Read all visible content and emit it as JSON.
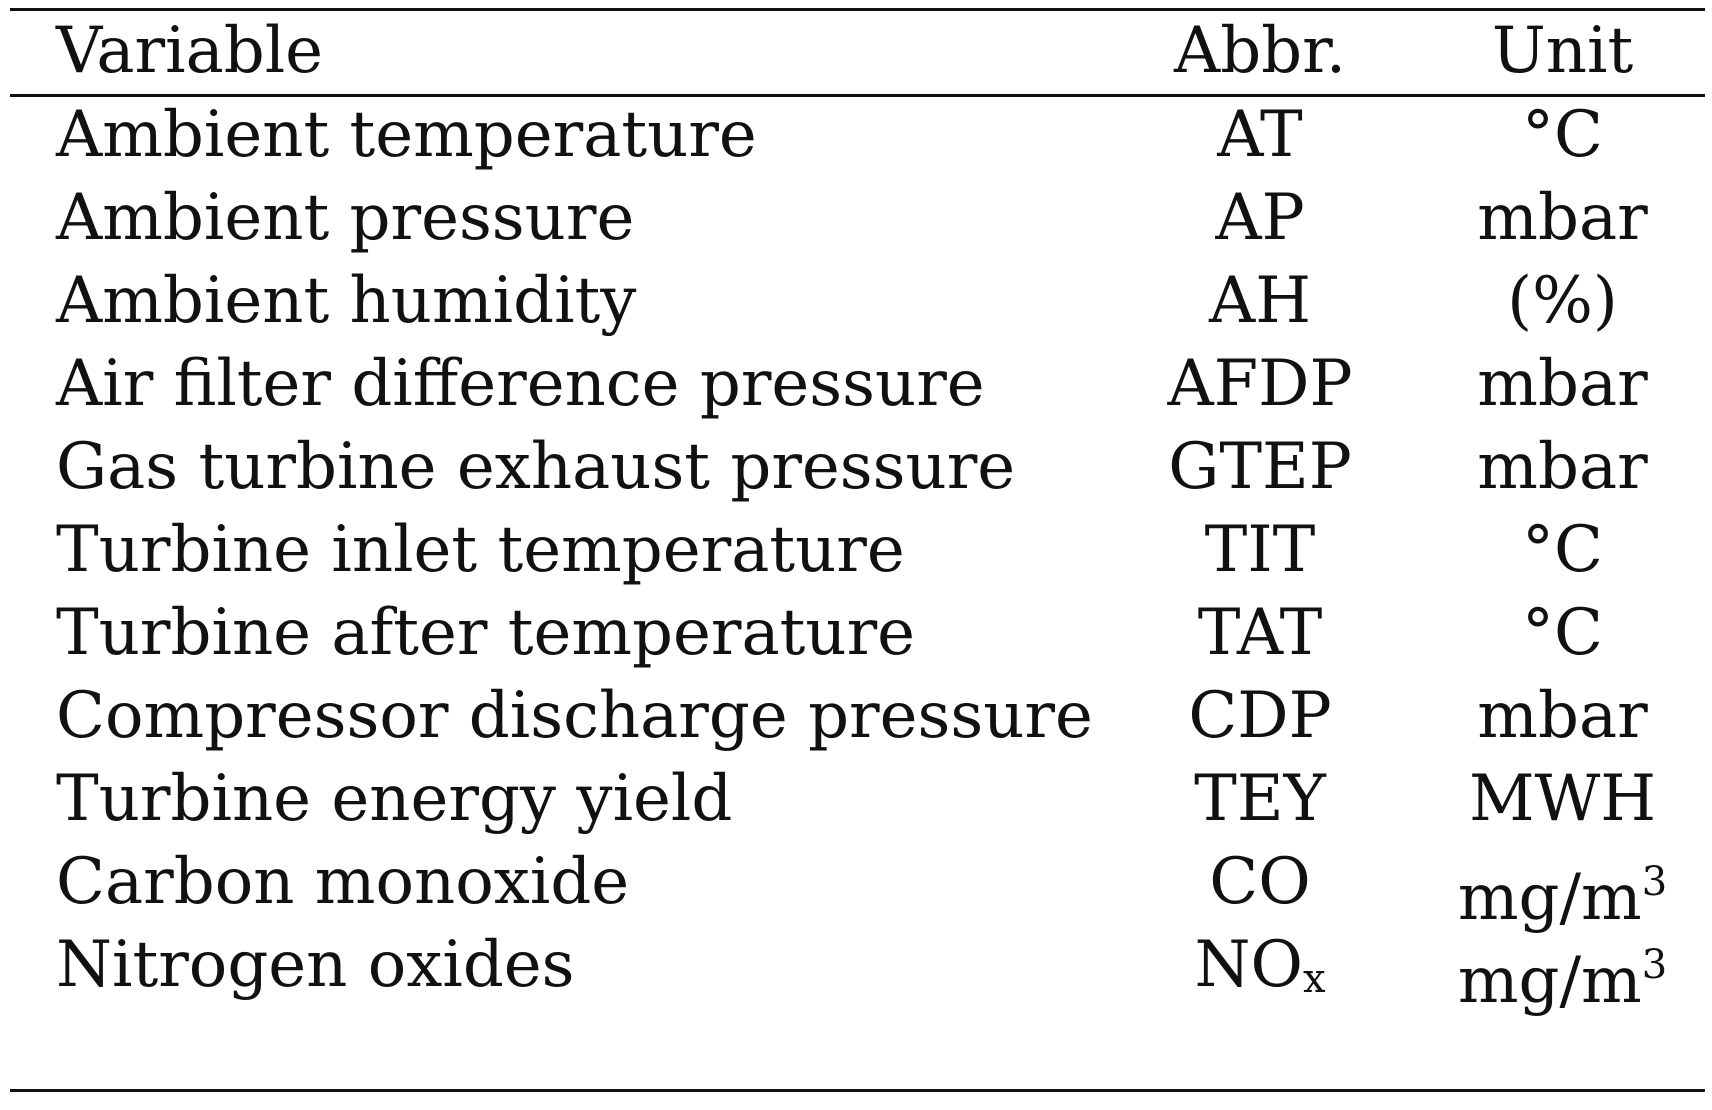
{
  "table": {
    "headers": {
      "variable": "Variable",
      "abbr": "Abbr.",
      "unit": "Unit"
    },
    "rows": [
      {
        "variable": "Ambient temperature",
        "abbr": "AT",
        "abbr_sub": "",
        "unit": "°C",
        "unit_sup": ""
      },
      {
        "variable": "Ambient pressure",
        "abbr": "AP",
        "abbr_sub": "",
        "unit": "mbar",
        "unit_sup": ""
      },
      {
        "variable": "Ambient humidity",
        "abbr": "AH",
        "abbr_sub": "",
        "unit": "(%)",
        "unit_sup": ""
      },
      {
        "variable": "Air filter difference pressure",
        "abbr": "AFDP",
        "abbr_sub": "",
        "unit": "mbar",
        "unit_sup": ""
      },
      {
        "variable": "Gas turbine exhaust pressure",
        "abbr": "GTEP",
        "abbr_sub": "",
        "unit": "mbar",
        "unit_sup": ""
      },
      {
        "variable": "Turbine inlet temperature",
        "abbr": "TIT",
        "abbr_sub": "",
        "unit": "°C",
        "unit_sup": ""
      },
      {
        "variable": "Turbine after temperature",
        "abbr": "TAT",
        "abbr_sub": "",
        "unit": "°C",
        "unit_sup": ""
      },
      {
        "variable": "Compressor discharge pressure",
        "abbr": "CDP",
        "abbr_sub": "",
        "unit": "mbar",
        "unit_sup": ""
      },
      {
        "variable": "Turbine energy yield",
        "abbr": "TEY",
        "abbr_sub": "",
        "unit": "MWH",
        "unit_sup": ""
      },
      {
        "variable": "Carbon monoxide",
        "abbr": "CO",
        "abbr_sub": "",
        "unit": "mg/m",
        "unit_sup": "3"
      },
      {
        "variable": "Nitrogen oxides",
        "abbr": "NO",
        "abbr_sub": "x",
        "unit": "mg/m",
        "unit_sup": "3"
      }
    ]
  }
}
